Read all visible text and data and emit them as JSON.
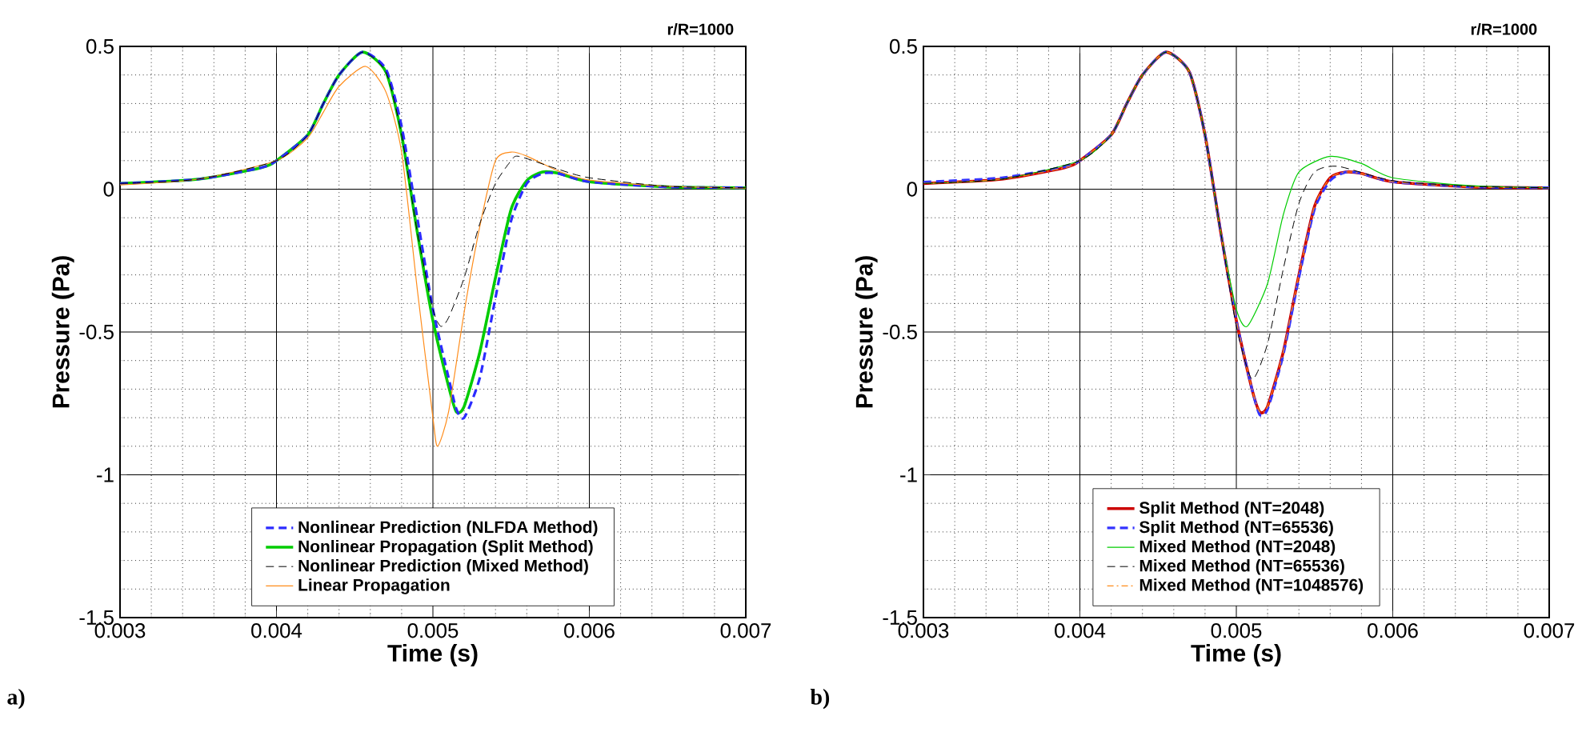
{
  "chart_data": [
    {
      "type": "line",
      "xlabel": "Time (s)",
      "ylabel": "Pressure (Pa)",
      "xlim": [
        0.003,
        0.007
      ],
      "ylim": [
        -1.5,
        0.5
      ],
      "xticks": [
        0.003,
        0.004,
        0.005,
        0.006,
        0.007
      ],
      "yticks": [
        -1.5,
        -1,
        -0.5,
        0,
        0.5
      ],
      "grid": true,
      "legend": "bottom",
      "annotations": [
        "r/R=1000",
        "a)"
      ],
      "series": [
        {
          "name": "Nonlinear Prediction (NLFDA Method)",
          "color": "#2b2bff",
          "line_style": "dashed",
          "x": [
            0.003,
            0.0035,
            0.0039,
            0.004,
            0.0042,
            0.0043,
            0.0044,
            0.00455,
            0.0047,
            0.0048,
            0.0049,
            0.005,
            0.0051,
            0.00515,
            0.0052,
            0.0053,
            0.0054,
            0.0055,
            0.0056,
            0.0057,
            0.0058,
            0.006,
            0.0065,
            0.007
          ],
          "values": [
            0.02,
            0.035,
            0.075,
            0.1,
            0.19,
            0.3,
            0.4,
            0.48,
            0.42,
            0.22,
            -0.1,
            -0.42,
            -0.66,
            -0.77,
            -0.8,
            -0.66,
            -0.38,
            -0.11,
            0.02,
            0.055,
            0.055,
            0.026,
            0.008,
            0.005
          ]
        },
        {
          "name": "Nonlinear Propagation (Split Method)",
          "color": "#00cc00",
          "line_style": "solid",
          "x": [
            0.003,
            0.0035,
            0.0039,
            0.004,
            0.0042,
            0.0043,
            0.0044,
            0.00455,
            0.0047,
            0.0048,
            0.0049,
            0.005,
            0.0051,
            0.00515,
            0.0052,
            0.0053,
            0.0054,
            0.0055,
            0.0056,
            0.0057,
            0.0058,
            0.006,
            0.0065,
            0.007
          ],
          "values": [
            0.02,
            0.035,
            0.075,
            0.1,
            0.19,
            0.3,
            0.4,
            0.48,
            0.41,
            0.19,
            -0.15,
            -0.46,
            -0.69,
            -0.78,
            -0.76,
            -0.57,
            -0.31,
            -0.07,
            0.03,
            0.06,
            0.056,
            0.026,
            0.008,
            0.005
          ]
        },
        {
          "name": "Nonlinear Prediction (Mixed Method)",
          "color": "#000000",
          "line_style": "dashed",
          "x": [
            0.003,
            0.0035,
            0.004,
            0.0042,
            0.0043,
            0.0044,
            0.00455,
            0.0047,
            0.0048,
            0.0049,
            0.005,
            0.00505,
            0.0051,
            0.0052,
            0.0053,
            0.0054,
            0.0055,
            0.00555,
            0.0058,
            0.006,
            0.0065,
            0.007
          ],
          "values": [
            0.02,
            0.035,
            0.1,
            0.19,
            0.3,
            0.4,
            0.48,
            0.41,
            0.19,
            -0.15,
            -0.42,
            -0.48,
            -0.45,
            -0.31,
            -0.12,
            0.02,
            0.1,
            0.115,
            0.07,
            0.04,
            0.01,
            0.005
          ]
        },
        {
          "name": "Linear Propagation",
          "color": "#ff8c1a",
          "line_style": "solid",
          "x": [
            0.003,
            0.0035,
            0.004,
            0.0042,
            0.0043,
            0.0044,
            0.00457,
            0.0047,
            0.0048,
            0.0049,
            0.005,
            0.00503,
            0.0051,
            0.0052,
            0.0053,
            0.0054,
            0.0055,
            0.0056,
            0.0058,
            0.006,
            0.0065,
            0.007
          ],
          "values": [
            0.015,
            0.035,
            0.1,
            0.18,
            0.27,
            0.36,
            0.43,
            0.34,
            0.13,
            -0.35,
            -0.8,
            -0.9,
            -0.78,
            -0.43,
            -0.13,
            0.1,
            0.13,
            0.116,
            0.064,
            0.032,
            0.01,
            0.004
          ]
        }
      ]
    },
    {
      "type": "line",
      "xlabel": "Time (s)",
      "ylabel": "Pressure (Pa)",
      "xlim": [
        0.003,
        0.007
      ],
      "ylim": [
        -1.5,
        0.5
      ],
      "xticks": [
        0.003,
        0.004,
        0.005,
        0.006,
        0.007
      ],
      "yticks": [
        -1.5,
        -1,
        -0.5,
        0,
        0.5
      ],
      "grid": true,
      "legend": "bottom",
      "annotations": [
        "r/R=1000",
        "b)"
      ],
      "series": [
        {
          "name": "Split Method (NT=2048)",
          "color": "#cc0000",
          "line_style": "solid",
          "x": [
            0.003,
            0.0035,
            0.0039,
            0.004,
            0.0042,
            0.0043,
            0.0044,
            0.00455,
            0.0047,
            0.0048,
            0.0049,
            0.005,
            0.0051,
            0.00515,
            0.0052,
            0.0053,
            0.0054,
            0.0055,
            0.0056,
            0.0057,
            0.0058,
            0.006,
            0.0065,
            0.007
          ],
          "values": [
            0.02,
            0.035,
            0.075,
            0.1,
            0.19,
            0.3,
            0.4,
            0.48,
            0.41,
            0.19,
            -0.15,
            -0.46,
            -0.7,
            -0.78,
            -0.76,
            -0.57,
            -0.3,
            -0.06,
            0.04,
            0.06,
            0.055,
            0.026,
            0.008,
            0.005
          ]
        },
        {
          "name": "Split Method (NT=65536)",
          "color": "#3333ff",
          "line_style": "dashed",
          "x": [
            0.003,
            0.0035,
            0.0039,
            0.004,
            0.0042,
            0.0043,
            0.0044,
            0.00455,
            0.0047,
            0.0048,
            0.0049,
            0.005,
            0.0051,
            0.00515,
            0.0052,
            0.0053,
            0.0054,
            0.0055,
            0.0056,
            0.0057,
            0.0058,
            0.006,
            0.0065,
            0.007
          ],
          "values": [
            0.025,
            0.04,
            0.078,
            0.1,
            0.19,
            0.3,
            0.4,
            0.48,
            0.41,
            0.19,
            -0.15,
            -0.46,
            -0.7,
            -0.79,
            -0.77,
            -0.58,
            -0.31,
            -0.07,
            0.03,
            0.06,
            0.055,
            0.026,
            0.008,
            0.005
          ]
        },
        {
          "name": "Mixed Method (NT=2048)",
          "color": "#00cc00",
          "line_style": "solid",
          "x": [
            0.003,
            0.0035,
            0.004,
            0.0042,
            0.0043,
            0.0044,
            0.00455,
            0.0047,
            0.0048,
            0.0049,
            0.005,
            0.00507,
            0.0052,
            0.0053,
            0.0054,
            0.0056,
            0.0058,
            0.006,
            0.0065,
            0.007
          ],
          "values": [
            0.02,
            0.035,
            0.1,
            0.19,
            0.3,
            0.4,
            0.48,
            0.41,
            0.19,
            -0.15,
            -0.42,
            -0.48,
            -0.33,
            -0.09,
            0.06,
            0.115,
            0.09,
            0.04,
            0.012,
            0.005
          ]
        },
        {
          "name": "Mixed Method (NT=65536)",
          "color": "#000000",
          "line_style": "dashed",
          "x": [
            0.003,
            0.0035,
            0.004,
            0.0042,
            0.0043,
            0.0044,
            0.00455,
            0.0047,
            0.0048,
            0.0049,
            0.005,
            0.0051,
            0.0052,
            0.0053,
            0.0054,
            0.0055,
            0.00565,
            0.006,
            0.0065,
            0.007
          ],
          "values": [
            0.02,
            0.035,
            0.1,
            0.19,
            0.3,
            0.4,
            0.48,
            0.41,
            0.19,
            -0.15,
            -0.48,
            -0.665,
            -0.54,
            -0.28,
            -0.05,
            0.06,
            0.08,
            0.03,
            0.01,
            0.005
          ]
        },
        {
          "name": "Mixed Method (NT=1048576)",
          "color": "#ff8c1a",
          "line_style": "dashdot",
          "x": [
            0.003,
            0.0035,
            0.0039,
            0.004,
            0.0042,
            0.0043,
            0.0044,
            0.00455,
            0.0047,
            0.0048,
            0.0049,
            0.005,
            0.0051,
            0.00515,
            0.0052,
            0.0053,
            0.0054,
            0.0055,
            0.0056,
            0.0057,
            0.0058,
            0.006,
            0.0065,
            0.007
          ],
          "values": [
            0.02,
            0.035,
            0.075,
            0.1,
            0.19,
            0.3,
            0.4,
            0.48,
            0.41,
            0.19,
            -0.15,
            -0.46,
            -0.7,
            -0.78,
            -0.76,
            -0.57,
            -0.3,
            -0.06,
            0.04,
            0.06,
            0.055,
            0.026,
            0.008,
            0.005
          ]
        }
      ]
    }
  ]
}
